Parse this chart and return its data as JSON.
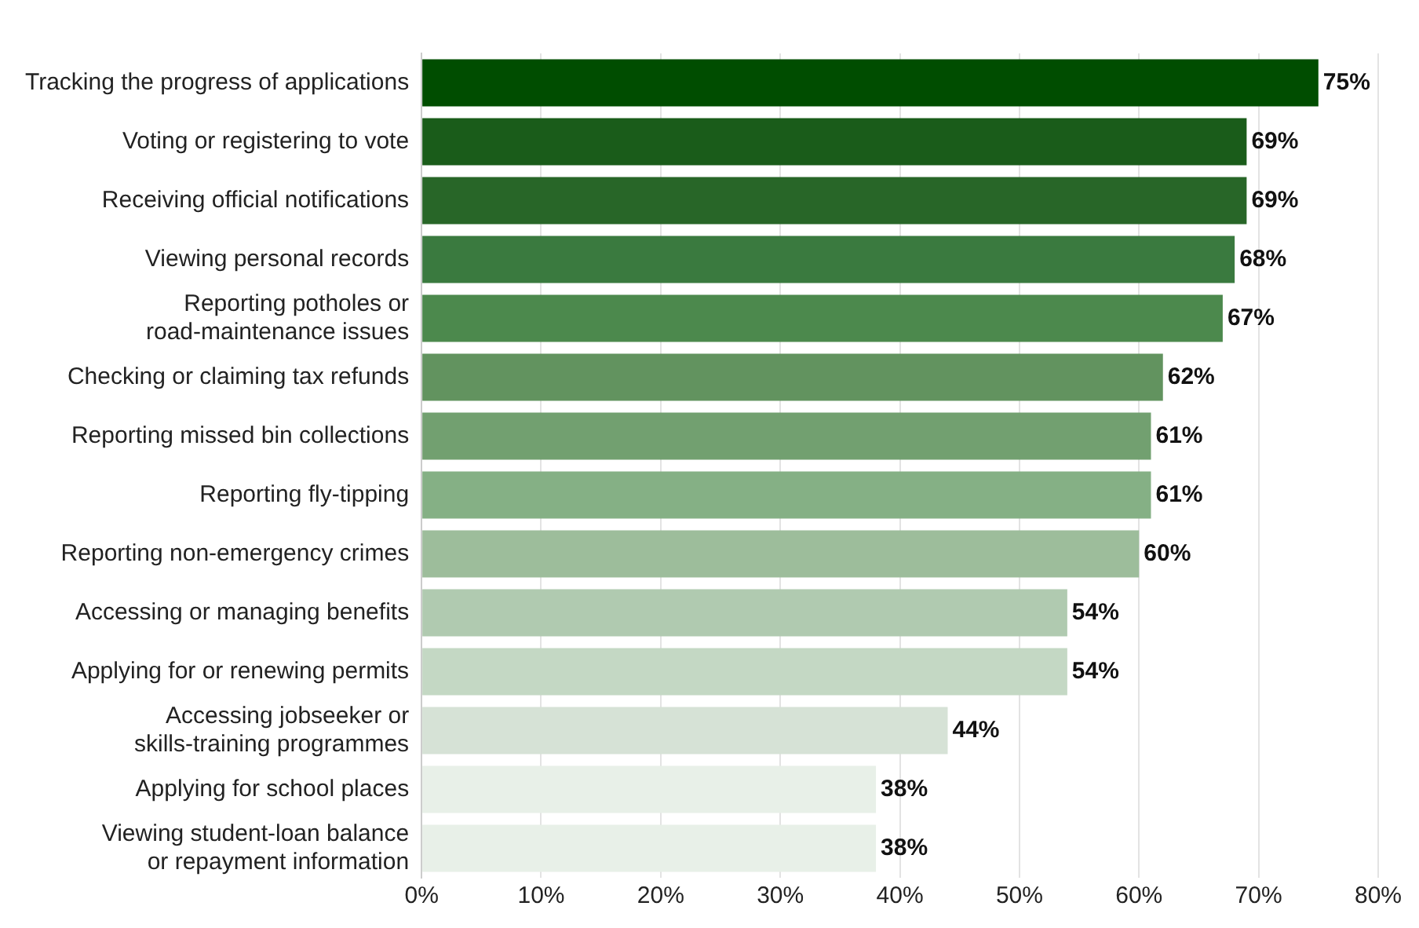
{
  "chart_data": {
    "type": "bar",
    "orientation": "horizontal",
    "categories": [
      "Tracking the progress of applications",
      "Voting or registering to vote",
      "Receiving official notifications",
      "Viewing personal records",
      "Reporting potholes or road-maintenance issues",
      "Checking or claiming tax refunds",
      "Reporting missed bin collections",
      "Reporting fly-tipping",
      "Reporting non-emergency crimes",
      "Accessing or managing benefits",
      "Applying for or renewing permits",
      "Accessing jobseeker or skills-training programmes",
      "Applying for school places",
      "Viewing student-loan balance or repayment information"
    ],
    "values": [
      75,
      69,
      69,
      68,
      67,
      62,
      61,
      61,
      60,
      54,
      54,
      44,
      38,
      38
    ],
    "colors": [
      "#004d00",
      "#1a5c1a",
      "#286628",
      "#3a7a3f",
      "#4c894d",
      "#62935f",
      "#72a070",
      "#85b085",
      "#9dbd9b",
      "#b0cab0",
      "#c4d8c4",
      "#d6e2d6",
      "#e8f0e8",
      "#e8f0e8"
    ],
    "value_labels": [
      "75%",
      "69%",
      "69%",
      "68%",
      "67%",
      "62%",
      "61%",
      "61%",
      "60%",
      "54%",
      "54%",
      "44%",
      "38%",
      "38%"
    ],
    "xlim": [
      0,
      80
    ],
    "xticks": [
      {
        "value": 0,
        "label": "0%"
      },
      {
        "value": 10,
        "label": "10%"
      },
      {
        "value": 20,
        "label": "20%"
      },
      {
        "value": 30,
        "label": "30%"
      },
      {
        "value": 40,
        "label": "40%"
      },
      {
        "value": 50,
        "label": "50%"
      },
      {
        "value": 60,
        "label": "60%"
      },
      {
        "value": 70,
        "label": "70%"
      },
      {
        "value": 80,
        "label": "80%"
      }
    ],
    "grid": "x",
    "legend": false
  }
}
